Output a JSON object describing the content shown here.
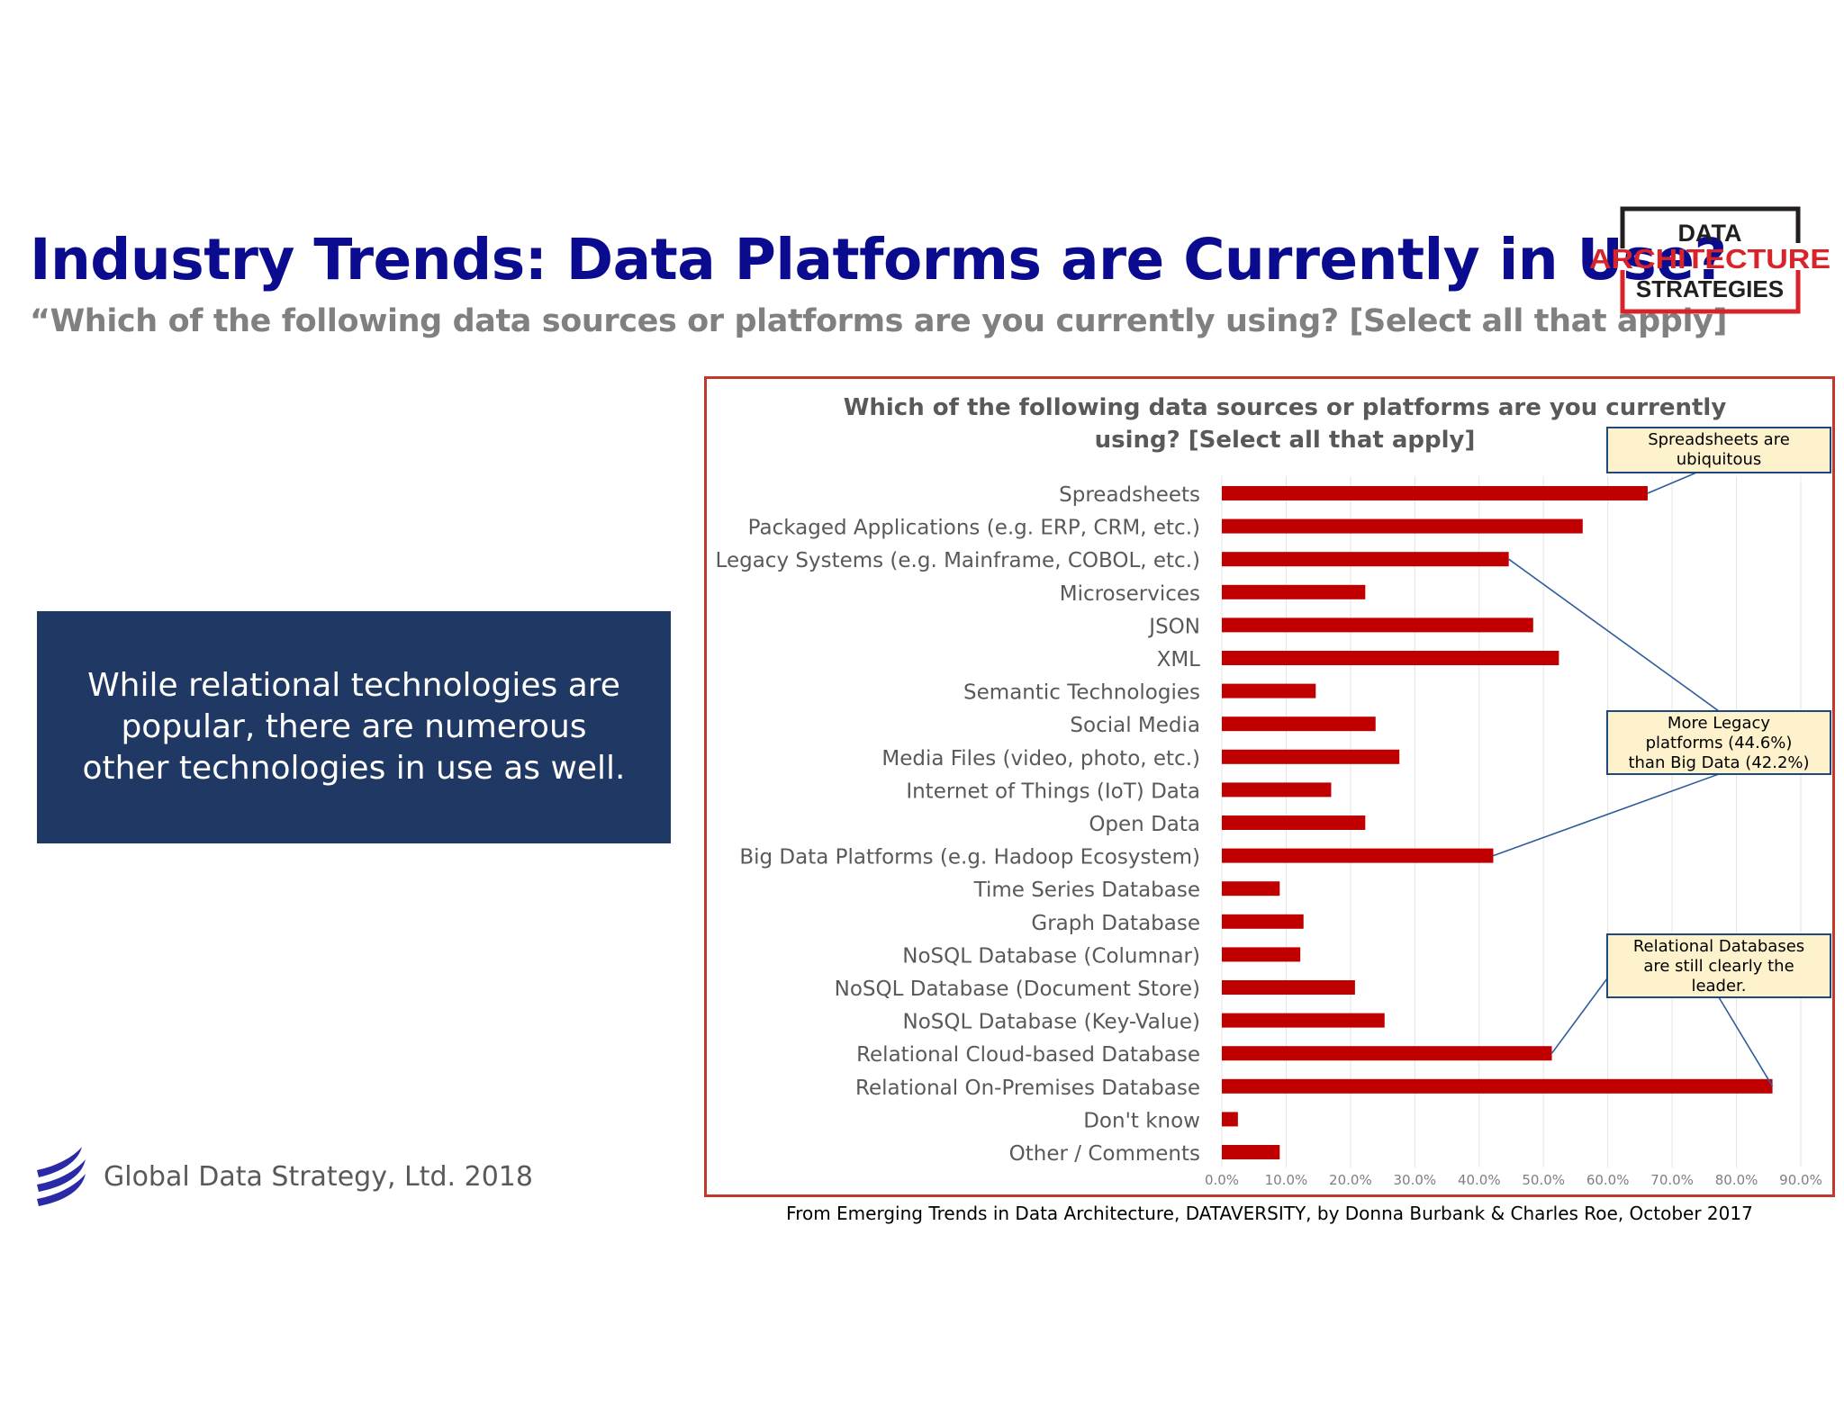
{
  "slide": {
    "title": "Industry Trends: Data Platforms are Currently in Use?",
    "subtitle": "“Which of the following data sources or platforms are you currently using? [Select all that apply]",
    "callout": "While relational technologies are popular, there are numerous other technologies in use as well.",
    "footer_brand": "Global Data Strategy, Ltd. 2018",
    "source_note": "From Emerging Trends in Data Architecture, DATAVERSITY, by Donna Burbank & Charles Roe, October 2017"
  },
  "logo": {
    "line1": "DATA",
    "line2": "ARCHITECTURE",
    "line3": "STRATEGIES",
    "colors": {
      "red": "#d9232a",
      "dark": "#231f20"
    }
  },
  "colors": {
    "title": "#0b0b8f",
    "bar": "#c00000",
    "callout_bg": "#203864",
    "frame": "#c0392b",
    "annotation_bg": "#fdf2cc",
    "annotation_border": "#1f497d"
  },
  "chart_data": {
    "type": "bar",
    "orientation": "horizontal",
    "title": "Which of the following data sources or platforms are you currently using? [Select all that apply]",
    "title_lines": [
      "Which of the following data sources or platforms are you currently",
      "using? [Select all that apply]"
    ],
    "categories": [
      "Spreadsheets",
      "Packaged Applications (e.g. ERP, CRM, etc.)",
      "Legacy Systems (e.g. Mainframe, COBOL, etc.)",
      "Microservices",
      "JSON",
      "XML",
      "Semantic Technologies",
      "Social Media",
      "Media Files (video, photo, etc.)",
      "Internet of Things (IoT) Data",
      "Open Data",
      "Big Data Platforms (e.g. Hadoop Ecosystem)",
      "Time Series Database",
      "Graph Database",
      "NoSQL Database (Columnar)",
      "NoSQL Database (Document Store)",
      "NoSQL Database (Key-Value)",
      "Relational Cloud-based Database",
      "Relational On-Premises Database",
      "Don't know",
      "Other / Comments"
    ],
    "values": [
      66.2,
      56.1,
      44.6,
      22.3,
      48.4,
      52.4,
      14.6,
      23.9,
      27.6,
      17.0,
      22.3,
      42.2,
      9.0,
      12.7,
      12.2,
      20.7,
      25.3,
      51.3,
      85.6,
      2.5,
      9.0
    ],
    "xlim": [
      0,
      90
    ],
    "xticks": [
      "0.0%",
      "10.0%",
      "20.0%",
      "30.0%",
      "40.0%",
      "50.0%",
      "60.0%",
      "70.0%",
      "80.0%",
      "90.0%"
    ],
    "grid": true,
    "annotations": [
      {
        "text_lines": [
          "Spreadsheets are",
          "ubiquitous"
        ],
        "targets": [
          0
        ]
      },
      {
        "text_lines": [
          "More Legacy",
          "platforms (44.6%)",
          "than Big Data (42.2%)"
        ],
        "targets": [
          2,
          11
        ]
      },
      {
        "text_lines": [
          "Relational Databases",
          "are still clearly the",
          "leader."
        ],
        "targets": [
          17,
          18
        ]
      }
    ]
  }
}
